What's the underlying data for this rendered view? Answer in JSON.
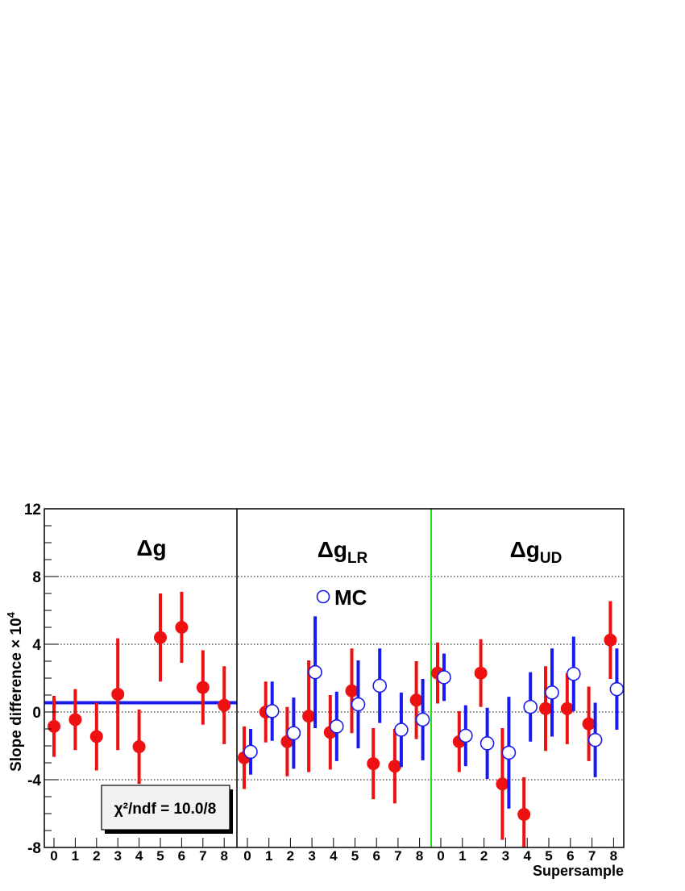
{
  "chart_data": {
    "type": "scatter",
    "ylabel": "Slope difference × 10",
    "ylabel_sup": "4",
    "xlabel": "Supersample",
    "ylim": [
      -8,
      12
    ],
    "yticks": [
      "-8",
      "-4",
      "0",
      "4",
      "8",
      "12"
    ],
    "yticks_values": [
      -8,
      -4,
      0,
      4,
      8,
      12
    ],
    "grid": "dotted horizontal at 8, 4, 0, -4",
    "panels": [
      {
        "title_main": "Δg",
        "title_sub": "",
        "categories": [
          "0",
          "1",
          "2",
          "3",
          "4",
          "5",
          "6",
          "7",
          "8"
        ],
        "fit_value": 0.55,
        "fit_color": "#1a1aee",
        "annotation": "χ²/ndf = 10.0/8",
        "series": [
          {
            "kind": "data",
            "color": "#ee1111",
            "values": [
              -0.85,
              -0.45,
              -1.45,
              1.05,
              -2.05,
              4.4,
              5.0,
              1.45,
              0.4
            ],
            "errors": [
              1.8,
              1.8,
              2.0,
              3.3,
              2.2,
              2.6,
              2.1,
              2.2,
              2.3
            ]
          }
        ]
      },
      {
        "title_main": "Δg",
        "title_sub": "LR",
        "categories": [
          "0",
          "1",
          "2",
          "3",
          "4",
          "5",
          "6",
          "7",
          "8"
        ],
        "legend_label": "MC",
        "series": [
          {
            "kind": "data",
            "color": "#ee1111",
            "values": [
              -2.7,
              0.0,
              -1.75,
              -0.25,
              -1.2,
              1.25,
              -3.05,
              -3.2,
              0.7
            ],
            "errors": [
              1.85,
              1.8,
              2.05,
              3.3,
              2.2,
              2.5,
              2.1,
              2.2,
              2.3
            ]
          },
          {
            "kind": "MC",
            "color": "#1a1aee",
            "values": [
              -2.35,
              0.05,
              -1.25,
              2.35,
              -0.85,
              0.45,
              1.55,
              -1.05,
              -0.45
            ],
            "errors": [
              1.35,
              1.75,
              2.1,
              3.3,
              2.05,
              2.6,
              2.2,
              2.2,
              2.4
            ]
          }
        ]
      },
      {
        "title_main": "Δg",
        "title_sub": "UD",
        "categories": [
          "0",
          "1",
          "2",
          "3",
          "4",
          "5",
          "6",
          "7",
          "8"
        ],
        "series": [
          {
            "kind": "data",
            "color": "#ee1111",
            "values": [
              2.3,
              -1.75,
              2.3,
              -4.25,
              -6.05,
              0.2,
              0.2,
              -0.7,
              4.25
            ],
            "errors": [
              1.8,
              1.8,
              2.0,
              3.3,
              2.2,
              2.5,
              2.1,
              2.2,
              2.3
            ]
          },
          {
            "kind": "MC",
            "color": "#1a1aee",
            "values": [
              2.05,
              -1.4,
              -1.85,
              -2.4,
              0.3,
              1.15,
              2.25,
              -1.65,
              1.35
            ],
            "errors": [
              1.4,
              1.8,
              2.1,
              3.3,
              2.05,
              2.6,
              2.2,
              2.2,
              2.4
            ]
          }
        ]
      }
    ]
  }
}
